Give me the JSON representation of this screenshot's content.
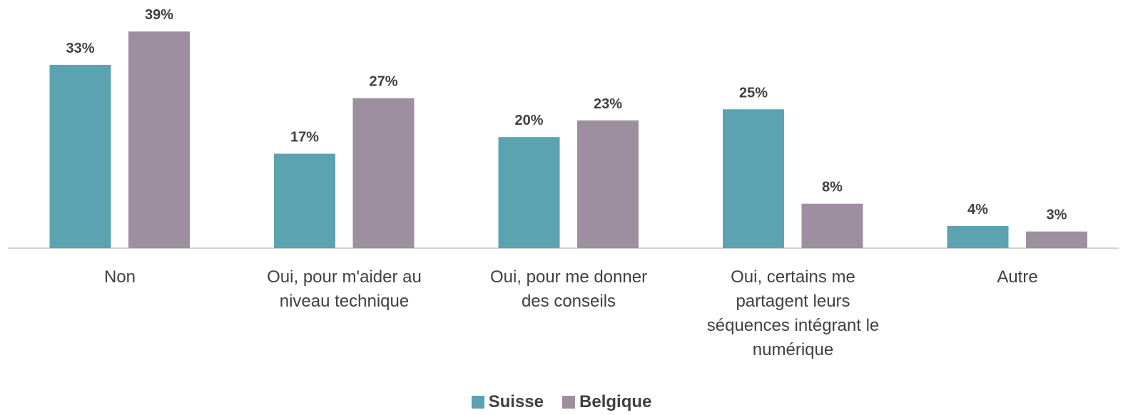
{
  "chart_data": {
    "type": "bar",
    "categories": [
      "Non",
      "Oui, pour m'aider au niveau technique",
      "Oui, pour me donner des conseils",
      "Oui, certains me partagent leurs séquences intégrant le numérique",
      "Autre"
    ],
    "series": [
      {
        "name": "Suisse",
        "color": "#5ba3b0",
        "values": [
          33,
          17,
          20,
          25,
          4
        ],
        "value_labels": [
          "33%",
          "17%",
          "20%",
          "25%",
          "4%"
        ]
      },
      {
        "name": "Belgique",
        "color": "#9e8fa0",
        "values": [
          39,
          27,
          23,
          8,
          3
        ],
        "value_labels": [
          "39%",
          "27%",
          "23%",
          "8%",
          "3%"
        ]
      }
    ]
  }
}
